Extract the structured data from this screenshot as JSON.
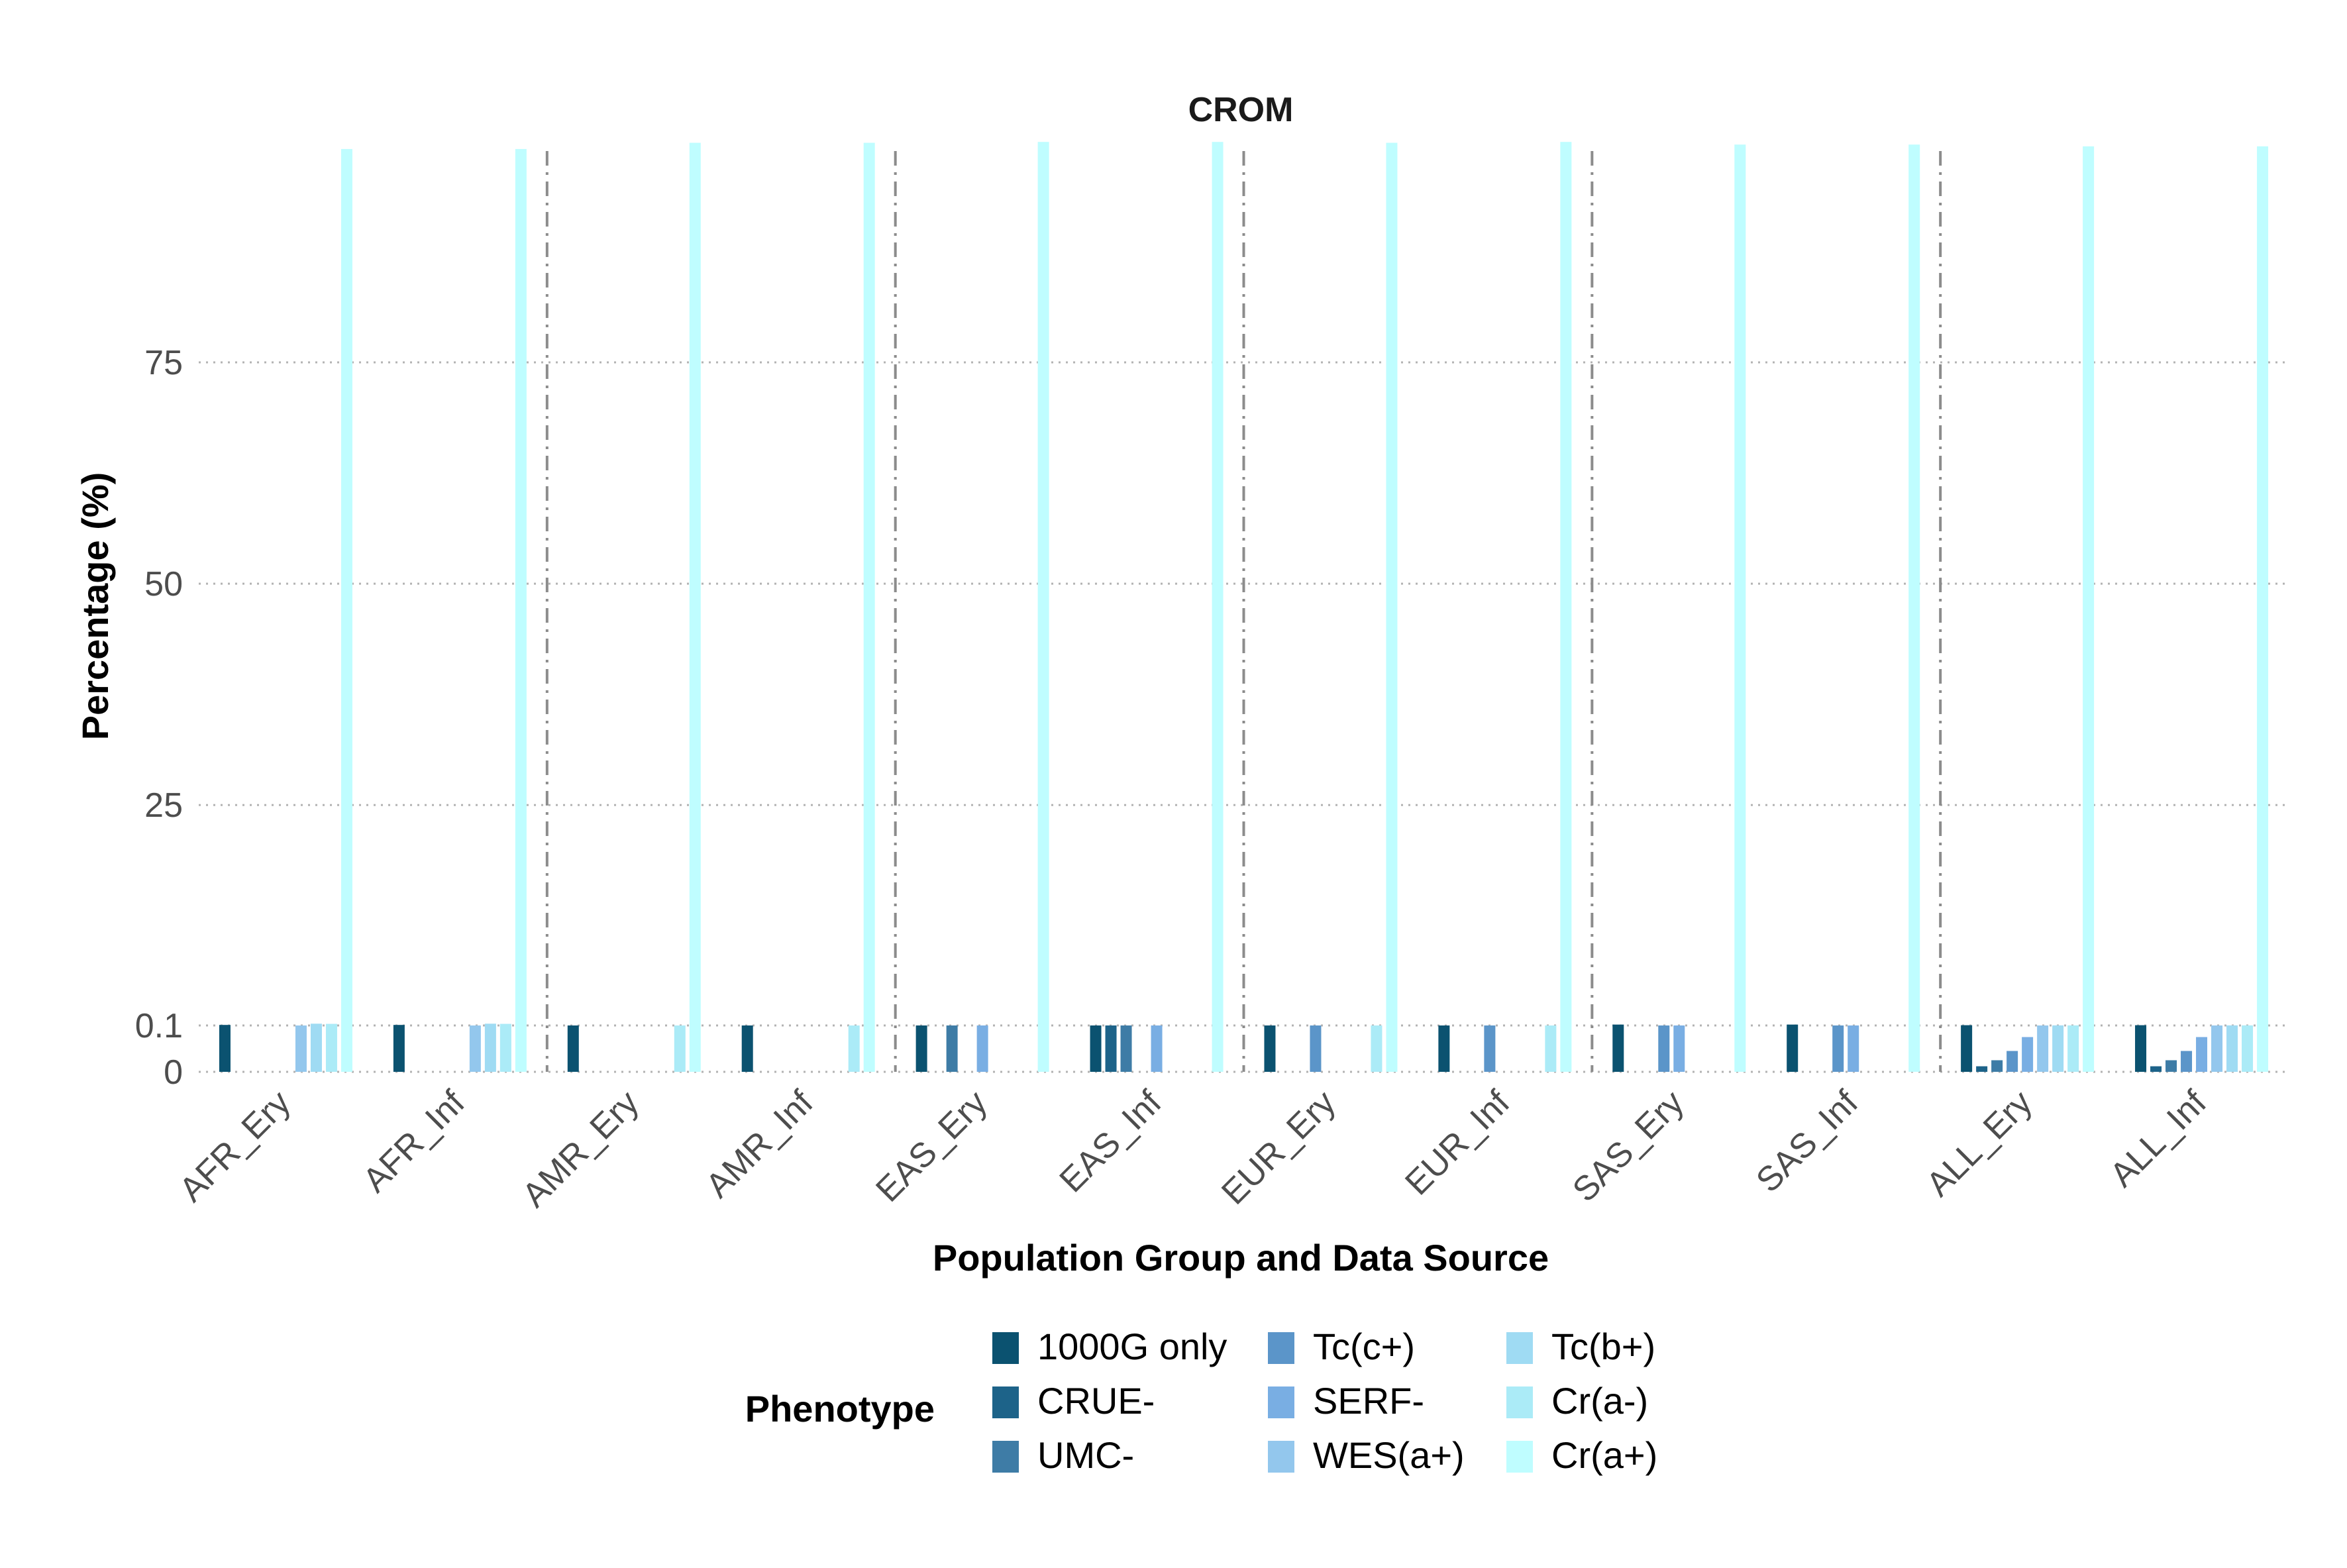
{
  "chart_data": {
    "type": "bar",
    "title": "CROM",
    "xlabel": "Population Group and Data Source",
    "ylabel": "Percentage (%)",
    "y_scale": "piecewise: 0 to 0.1 expanded, 0.1 to 100 linear",
    "y_ticks": [
      {
        "value": 0,
        "label": "0"
      },
      {
        "value": 0.1,
        "label": "0.1"
      },
      {
        "value": 25,
        "label": "25"
      },
      {
        "value": 50,
        "label": "50"
      },
      {
        "value": 75,
        "label": "75"
      }
    ],
    "grid": "horizontal dotted",
    "group_separators": "dash-dot vertical lines between population pairs",
    "categories": [
      "AFR_Ery",
      "AFR_Inf",
      "AMR_Ery",
      "AMR_Inf",
      "EAS_Ery",
      "EAS_Inf",
      "EUR_Ery",
      "EUR_Inf",
      "SAS_Ery",
      "SAS_Inf",
      "ALL_Ery",
      "ALL_Inf"
    ],
    "series": [
      {
        "name": "1000G only",
        "color": "#0b5270",
        "values": [
          0.16,
          0.16,
          0.1,
          0.1,
          0.1,
          0.1,
          0.1,
          0.1,
          0.2,
          0.2,
          0.13,
          0.13
        ]
      },
      {
        "name": "CRUE-",
        "color": "#1d6389",
        "values": [
          0,
          0,
          0,
          0,
          0,
          0.1,
          0,
          0,
          0,
          0,
          0.012,
          0.012
        ]
      },
      {
        "name": "UMC-",
        "color": "#3e7ca6",
        "values": [
          0,
          0,
          0,
          0,
          0.1,
          0.1,
          0,
          0,
          0,
          0,
          0.025,
          0.025
        ]
      },
      {
        "name": "Tc(c+)",
        "color": "#5b95c9",
        "values": [
          0,
          0,
          0,
          0,
          0,
          0,
          0.1,
          0.1,
          0.1,
          0.1,
          0.045,
          0.045
        ]
      },
      {
        "name": "SERF-",
        "color": "#79aee3",
        "values": [
          0,
          0,
          0,
          0,
          0.1,
          0.1,
          0,
          0,
          0.1,
          0.1,
          0.075,
          0.075
        ]
      },
      {
        "name": "WES(a+)",
        "color": "#93c7ed",
        "values": [
          0.1,
          0.1,
          0,
          0,
          0,
          0,
          0,
          0,
          0,
          0,
          0.1,
          0.1
        ]
      },
      {
        "name": "Tc(b+)",
        "color": "#9fdbf3",
        "values": [
          0.3,
          0.3,
          0,
          0,
          0,
          0,
          0,
          0,
          0,
          0,
          0.11,
          0.11
        ]
      },
      {
        "name": "Cr(a-)",
        "color": "#abebf7",
        "values": [
          0.28,
          0.28,
          0.1,
          0.1,
          0,
          0,
          0.1,
          0.1,
          0,
          0,
          0.11,
          0.11
        ]
      },
      {
        "name": "Cr(a+)",
        "color": "#bffdff",
        "values": [
          99.1,
          99.1,
          99.8,
          99.8,
          99.9,
          99.9,
          99.8,
          99.9,
          99.6,
          99.6,
          99.4,
          99.4
        ]
      }
    ],
    "legend": {
      "title": "Phenotype",
      "position": "bottom",
      "layout": "3 columns, column-major",
      "entries": [
        "1000G only",
        "CRUE-",
        "UMC-",
        "Tc(c+)",
        "SERF-",
        "WES(a+)",
        "Tc(b+)",
        "Cr(a-)",
        "Cr(a+)"
      ]
    }
  }
}
